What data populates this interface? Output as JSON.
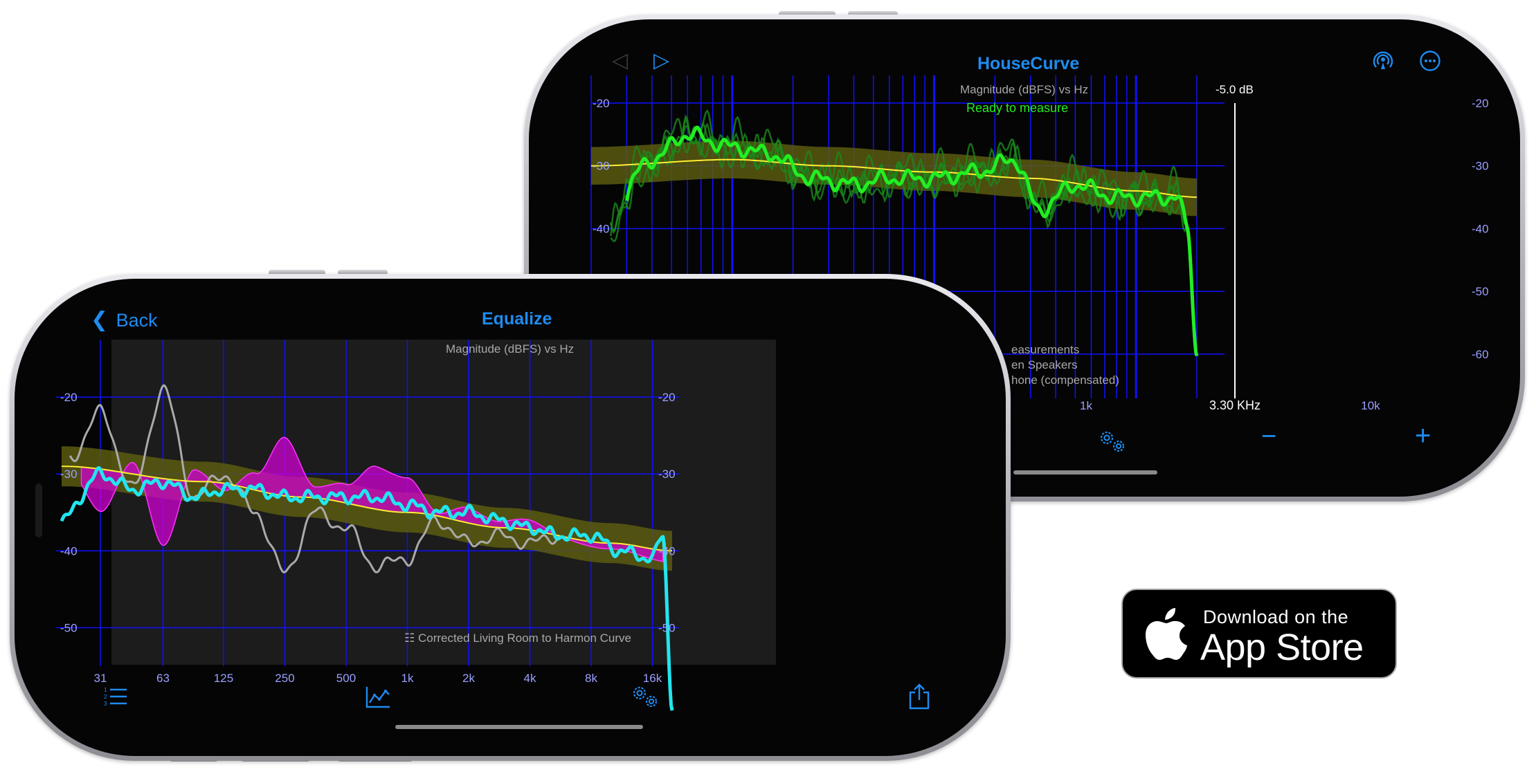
{
  "back_phone": {
    "title": "HouseCurve",
    "chart_title": "Magnitude (dBFS) vs Hz",
    "status": "Ready to measure",
    "cursor_db": "-5.0 dB",
    "cursor_freq": "3.30 KHz",
    "legend": [
      "easurements",
      "en Speakers",
      "hone (compensated)"
    ],
    "icons": {
      "back": "triangle-left-icon",
      "play": "play-icon",
      "broadcast": "broadcast-icon",
      "more": "ellipsis-icon",
      "settings": "gears-icon",
      "minus": "minus-icon",
      "plus": "plus-icon"
    },
    "toolbar": {
      "minus": "−",
      "plus": "+"
    }
  },
  "front_phone": {
    "title": "Equalize",
    "back_label": "Back",
    "chart_title": "Magnitude (dBFS) vs Hz",
    "caption": "Corrected Living Room to Harmon Curve",
    "icons": {
      "back": "chevron-left-icon",
      "list": "numbered-list-icon",
      "graph": "line-chart-icon",
      "settings": "gears-icon",
      "share": "share-icon",
      "caption": "sliders-icon"
    }
  },
  "app_store": {
    "line1": "Download on the",
    "line2": "App Store",
    "icon": "apple-logo-icon"
  },
  "colors": {
    "accent": "#1e8cf0",
    "grid": "#1010ff",
    "measurement": "#22ee22",
    "target": "#ffee33",
    "band": "#5a5a10",
    "eq_fill": "#d000d0",
    "corrected": "#22e5ee",
    "original": "#aaaaaa"
  },
  "chart_data": [
    {
      "type": "line",
      "title": "Magnitude (dBFS) vs Hz",
      "xlabel": "",
      "ylabel": "",
      "x_scale": "log",
      "y_ticks": [
        -20,
        -30,
        -40,
        -50,
        -60
      ],
      "x_ticks": [
        "1k",
        "10k"
      ],
      "ylim": [
        -60,
        -20
      ],
      "cursor": {
        "freq_hz": 3300,
        "db": -5.0
      },
      "series": [
        {
          "x": [
            20,
            40,
            60,
            100,
            150,
            250,
            400,
            600,
            1000,
            1600,
            2500,
            3300,
            5000,
            8000,
            12000,
            16000,
            18000,
            20000
          ],
          "values": [
            -44,
            -29,
            -25,
            -27,
            -28,
            -32,
            -33,
            -32,
            -32,
            -31,
            -29,
            -37,
            -33,
            -35,
            -35,
            -35,
            -40,
            -60
          ]
        },
        {
          "x": [
            20,
            100,
            300,
            1000,
            3000,
            10000,
            20000
          ],
          "values": [
            -30,
            -29,
            -30,
            -31,
            -32,
            -34,
            -35
          ]
        }
      ]
    },
    {
      "type": "line",
      "title": "Magnitude (dBFS) vs Hz",
      "xlabel": "",
      "ylabel": "",
      "x_scale": "log",
      "y_ticks": [
        -20,
        -30,
        -40,
        -50
      ],
      "x_ticks": [
        "31",
        "63",
        "125",
        "250",
        "500",
        "1k",
        "2k",
        "4k",
        "8k",
        "16k"
      ],
      "ylim": [
        -55,
        -10
      ],
      "series": [
        {
          "x": [
            20,
            31,
            45,
            63,
            90,
            125,
            180,
            250,
            350,
            500,
            700,
            1000,
            1400,
            2000,
            2800,
            4000,
            5600,
            8000,
            11000,
            16000,
            18000,
            20000
          ],
          "values": [
            -36,
            -30,
            -32,
            -31,
            -33,
            -32,
            -32,
            -33,
            -33,
            -33,
            -33,
            -34,
            -35,
            -35,
            -36,
            -37,
            -38,
            -38,
            -40,
            -41,
            -38,
            -60
          ]
        },
        {
          "x": [
            22,
            31,
            45,
            63,
            90,
            125,
            180,
            250,
            350,
            500,
            700,
            1000,
            1400,
            2000,
            2800,
            4000,
            5600
          ],
          "values": [
            -28,
            -22,
            -32,
            -19,
            -33,
            -30,
            -35,
            -43,
            -35,
            -37,
            -42,
            -41,
            -36,
            -39,
            -38,
            -39,
            -38
          ]
        },
        {
          "x": [
            20,
            100,
            300,
            1000,
            3000,
            10000,
            20000
          ],
          "values": [
            -29,
            -31,
            -33,
            -35,
            -37,
            -39,
            -40
          ]
        }
      ]
    }
  ]
}
